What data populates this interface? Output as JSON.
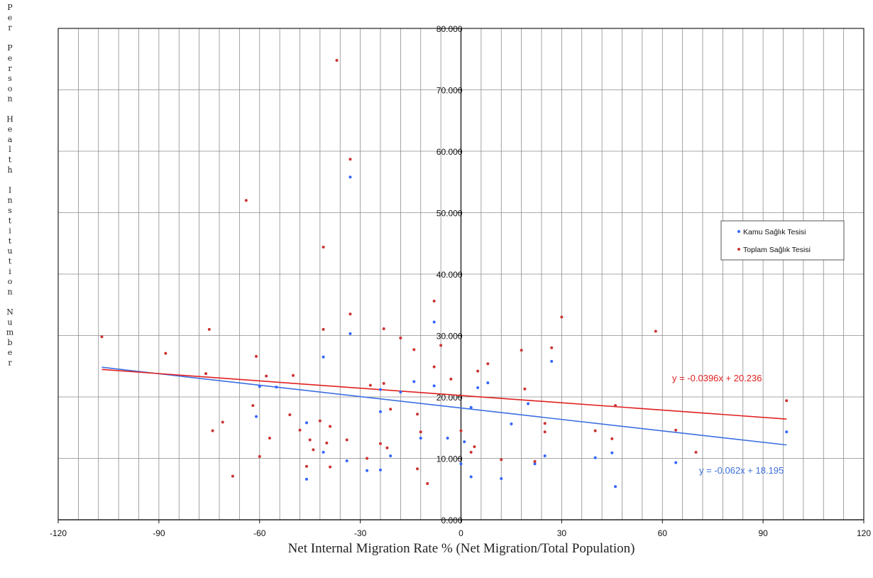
{
  "chart_data": {
    "type": "scatter",
    "xlabel": "Net Internal Migration Rate % (Net Migration/Total Population)",
    "ylabel": "Per Person Health Institution Number",
    "xlim": [
      -120,
      120
    ],
    "ylim": [
      0,
      80
    ],
    "x_ticks": [
      "-120",
      "-90",
      "-60",
      "-30",
      "0",
      "30",
      "60",
      "90",
      "120"
    ],
    "y_ticks": [
      "0.000",
      "10.000",
      "20.000",
      "30.000",
      "40.000",
      "50.000",
      "60.000",
      "70.000",
      "80.000"
    ],
    "grid": true,
    "legend_position": "right",
    "series": [
      {
        "name": "Kamu Sağlık Tesisi",
        "color": "#3366ff",
        "points": [
          [
            -33,
            55.8
          ],
          [
            -33,
            30.3
          ],
          [
            -41,
            26.5
          ],
          [
            -8,
            32.2
          ],
          [
            -14,
            22.5
          ],
          [
            -24,
            21.2
          ],
          [
            -8,
            21.8
          ],
          [
            -60,
            21.7
          ],
          [
            -61,
            16.8
          ],
          [
            -46,
            15.8
          ],
          [
            -24,
            17.6
          ],
          [
            -21,
            10.4
          ],
          [
            -41,
            11
          ],
          [
            -34,
            9.6
          ],
          [
            -28,
            8
          ],
          [
            -24,
            8.1
          ],
          [
            -46,
            6.6
          ],
          [
            -12,
            13.3
          ],
          [
            -4,
            13.3
          ],
          [
            1,
            12.7
          ],
          [
            0,
            9.1
          ],
          [
            3,
            18.3
          ],
          [
            5,
            21.5
          ],
          [
            8,
            22.3
          ],
          [
            3,
            7
          ],
          [
            12,
            6.7
          ],
          [
            15,
            15.6
          ],
          [
            20,
            18.9
          ],
          [
            22,
            9.1
          ],
          [
            25,
            10.4
          ],
          [
            27,
            25.8
          ],
          [
            40,
            10.1
          ],
          [
            45,
            10.9
          ],
          [
            46,
            5.4
          ],
          [
            64,
            9.3
          ],
          [
            97,
            14.3
          ],
          [
            -55,
            21.6
          ],
          [
            -18,
            20.8
          ]
        ]
      },
      {
        "name": "Toplam Sağlık Tesisi",
        "color": "#cc3333",
        "points": [
          [
            -37,
            74.8
          ],
          [
            -64,
            52
          ],
          [
            -33,
            58.7
          ],
          [
            -41,
            44.4
          ],
          [
            -8,
            35.6
          ],
          [
            -33,
            33.5
          ],
          [
            30,
            33
          ],
          [
            58,
            30.7
          ],
          [
            -75,
            31
          ],
          [
            -41,
            31
          ],
          [
            -23,
            31.1
          ],
          [
            -18,
            29.6
          ],
          [
            -107,
            29.8
          ],
          [
            -88,
            27.1
          ],
          [
            -6,
            28.4
          ],
          [
            -14,
            27.7
          ],
          [
            -61,
            26.6
          ],
          [
            -76,
            23.8
          ],
          [
            -50,
            23.5
          ],
          [
            -58,
            23.4
          ],
          [
            27,
            28
          ],
          [
            18,
            27.6
          ],
          [
            -8,
            24.9
          ],
          [
            5,
            24.2
          ],
          [
            8,
            25.4
          ],
          [
            -27,
            21.9
          ],
          [
            -3,
            22.9
          ],
          [
            -23,
            22.2
          ],
          [
            -74,
            14.5
          ],
          [
            -71,
            15.9
          ],
          [
            -68,
            7.1
          ],
          [
            -62,
            18.6
          ],
          [
            -57,
            13.3
          ],
          [
            -51,
            17.1
          ],
          [
            -48,
            14.6
          ],
          [
            -46,
            8.7
          ],
          [
            -44,
            11.4
          ],
          [
            -40,
            12.5
          ],
          [
            -39,
            15.2
          ],
          [
            -39,
            8.6
          ],
          [
            -34,
            13
          ],
          [
            -28,
            10
          ],
          [
            -24,
            12.4
          ],
          [
            -22,
            11.7
          ],
          [
            -21,
            18
          ],
          [
            -13,
            17.2
          ],
          [
            -12,
            14.3
          ],
          [
            -10,
            5.9
          ],
          [
            -13,
            8.3
          ],
          [
            0,
            14.5
          ],
          [
            3,
            11
          ],
          [
            4,
            11.9
          ],
          [
            12,
            9.8
          ],
          [
            19,
            21.3
          ],
          [
            22,
            9.5
          ],
          [
            25,
            14.3
          ],
          [
            25,
            15.7
          ],
          [
            40,
            14.5
          ],
          [
            45,
            13.2
          ],
          [
            46,
            18.6
          ],
          [
            64,
            14.6
          ],
          [
            70,
            11
          ],
          [
            97,
            19.4
          ],
          [
            -60,
            10.3
          ],
          [
            -42,
            16.1
          ],
          [
            -45,
            13
          ]
        ]
      }
    ],
    "trendlines": [
      {
        "series": "Kamu Sağlık Tesisi",
        "slope": -0.062,
        "intercept": 18.195,
        "x_range": [
          -107,
          97
        ],
        "label": "y = -0.062x + 18.195",
        "color": "#3b6fe0"
      },
      {
        "series": "Toplam Sağlık Tesisi",
        "slope": -0.0396,
        "intercept": 20.236,
        "x_range": [
          -107,
          97
        ],
        "label": "y = -0.0396x + 20.236",
        "color": "#e02020"
      }
    ]
  }
}
